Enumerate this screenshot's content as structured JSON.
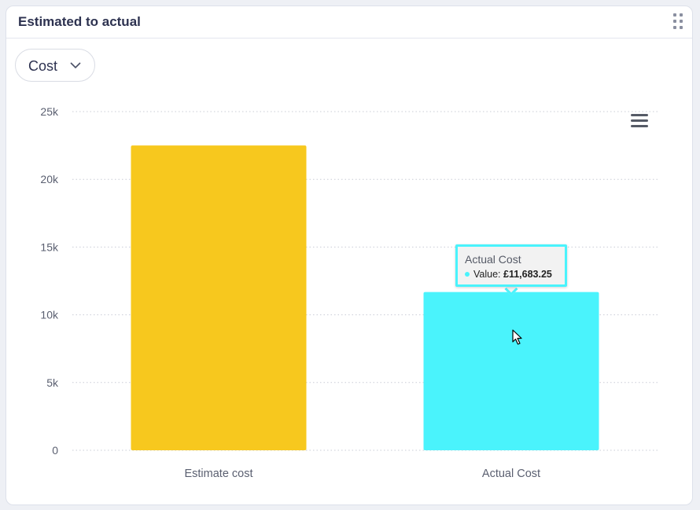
{
  "widget": {
    "title": "Estimated to actual",
    "dropdown": {
      "selected": "Cost"
    }
  },
  "icons": {
    "drag": "drag-handle-icon",
    "dropdown": "chevron-down-icon",
    "menu": "hamburger-menu-icon"
  },
  "colors": {
    "estimate": "#f7c81e",
    "actual": "#4af3fc",
    "grid": "#c9ccd6",
    "axis_text": "#5a5f70"
  },
  "tooltip": {
    "title": "Actual Cost",
    "label": "Value:",
    "value": "£11,683.25"
  },
  "chart_data": {
    "type": "bar",
    "categories": [
      "Estimate cost",
      "Actual Cost"
    ],
    "values": [
      22500,
      11683.25
    ],
    "ylim": [
      0,
      25000
    ],
    "yticks": [
      0,
      5000,
      10000,
      15000,
      20000,
      25000
    ],
    "ytick_labels": [
      "0",
      "5k",
      "10k",
      "15k",
      "20k",
      "25k"
    ],
    "grid": true,
    "legend": "none"
  }
}
